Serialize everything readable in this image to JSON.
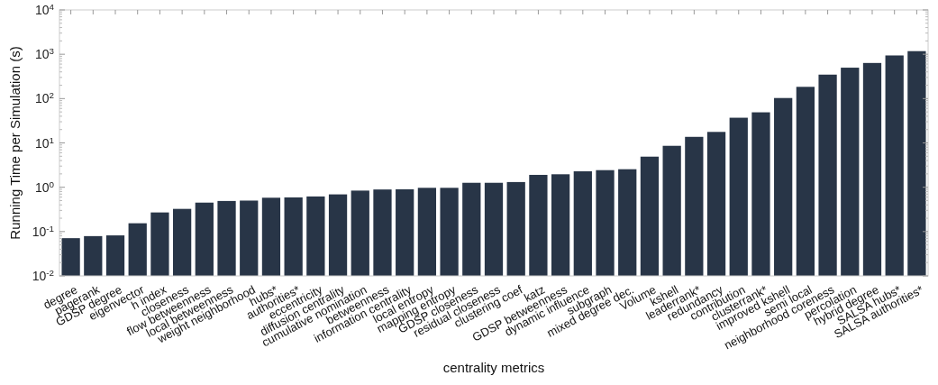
{
  "chart_data": {
    "type": "bar",
    "xlabel": "centrality metrics",
    "ylabel": "Running Time per Simulation (s)",
    "categories": [
      "degree",
      "pagerank",
      "GDSP degree",
      "eigenvector",
      "h index",
      "closeness",
      "flow betweenness",
      "local betweenness",
      "weight neighborhood",
      "hubs*",
      "authorities*",
      "eccentricity",
      "diffusion centrality",
      "cumulative nomination",
      "betweenness",
      "information centrality",
      "local entropy",
      "mapping entropy",
      "GDSP closeness",
      "residual closeness",
      "clustering coef",
      "katz",
      "GDSP betweenness",
      "dynamic influence",
      "subgraph",
      "mixed degree dec.",
      "Volume",
      "kshell",
      "leaderrank*",
      "redundancy",
      "contribution",
      "clusterrank*",
      "improved kshell",
      "semi local",
      "neighborhood coreness",
      "percolation",
      "hybrid degree",
      "SALSA hubs*",
      "SALSA authorities*"
    ],
    "values": [
      0.071,
      0.079,
      0.082,
      0.154,
      0.27,
      0.325,
      0.45,
      0.49,
      0.5,
      0.58,
      0.59,
      0.62,
      0.69,
      0.84,
      0.89,
      0.9,
      0.97,
      0.97,
      1.26,
      1.26,
      1.31,
      1.9,
      1.96,
      2.29,
      2.43,
      2.55,
      4.9,
      8.6,
      13.7,
      17.7,
      37,
      49,
      103,
      184,
      347,
      498,
      636,
      940,
      1175
    ],
    "color": "#283547",
    "log": true,
    "grid": false,
    "ylim": [
      0.01,
      10000
    ],
    "yticks": [
      {
        "value": 0.01,
        "label": "10$^{-2}$"
      },
      {
        "value": 0.1,
        "label": "10$^{-1}$"
      },
      {
        "value": 1,
        "label": "10$^{0}$"
      },
      {
        "value": 10,
        "label": "10$^{1}$"
      },
      {
        "value": 100,
        "label": "10$^{2}$"
      },
      {
        "value": 1000,
        "label": "10$^{3}$"
      },
      {
        "value": 10000,
        "label": "10$^{4}$"
      }
    ]
  }
}
